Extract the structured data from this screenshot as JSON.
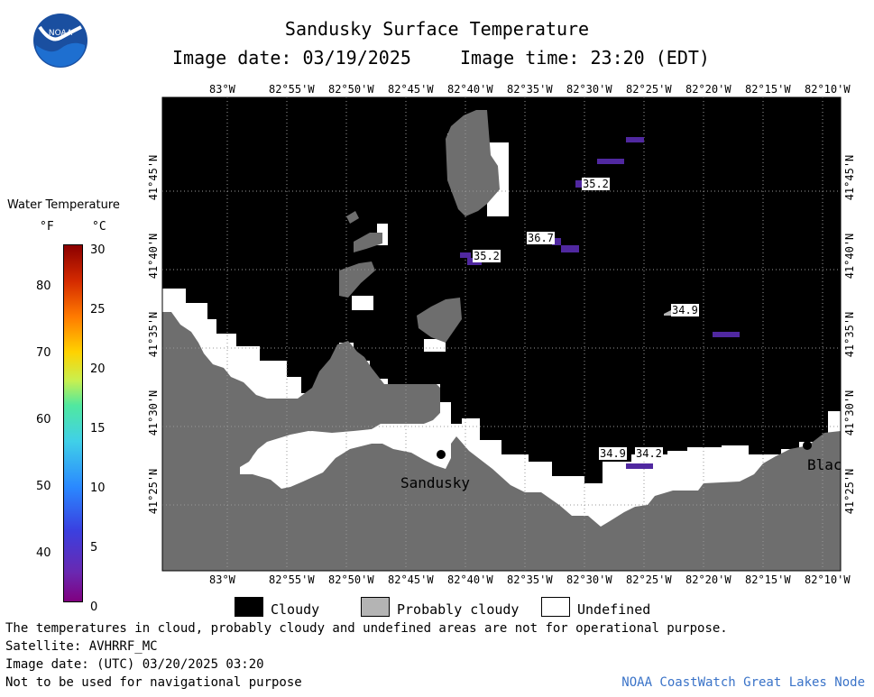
{
  "header": {
    "title": "Sandusky Surface Temperature",
    "image_date_label": "Image date: 03/19/2025",
    "image_time_label": "Image time: 23:20 (EDT)",
    "logo_text": "NOAA"
  },
  "map": {
    "lon_labels": [
      "83°W",
      "82°55'W",
      "82°50'W",
      "82°45'W",
      "82°40'W",
      "82°35'W",
      "82°30'W",
      "82°25'W",
      "82°20'W",
      "82°15'W",
      "82°10'W"
    ],
    "lat_labels": [
      "41°45'N",
      "41°40'N",
      "41°35'N",
      "41°30'N",
      "41°25'N"
    ],
    "city_labels": [
      "Sandusky",
      "Blac"
    ],
    "temperature_labels": [
      "35.2",
      "36.7",
      "35.2",
      "34.9",
      "34.9",
      "34.2"
    ],
    "colors": {
      "cloudy": "#000000",
      "land": "#6e6e6e",
      "probably_cloudy": "#b4b4b4",
      "undefined": "#ffffff",
      "cold_water": "#5028a0"
    }
  },
  "color_scale": {
    "title": "Water Temperature",
    "unit_f": "°F",
    "unit_c": "°C",
    "f_ticks": [
      "80",
      "70",
      "60",
      "50",
      "40"
    ],
    "c_ticks": [
      "30",
      "25",
      "20",
      "15",
      "10",
      "5",
      "0"
    ]
  },
  "key": {
    "items": [
      {
        "label": "Cloudy",
        "color": "#000000"
      },
      {
        "label": "Probably cloudy",
        "color": "#b4b4b4"
      },
      {
        "label": "Undefined",
        "color": "#ffffff"
      }
    ]
  },
  "footer": {
    "disclaimer": "The temperatures in cloud, probably cloudy and undefined areas are not for operational purpose.",
    "satellite": "Satellite: AVHRRF_MC",
    "utc_date": "Image date: (UTC) 03/20/2025  03:20",
    "nav_warning": "Not to be used for navigational purpose",
    "credit": "NOAA CoastWatch Great Lakes Node"
  }
}
